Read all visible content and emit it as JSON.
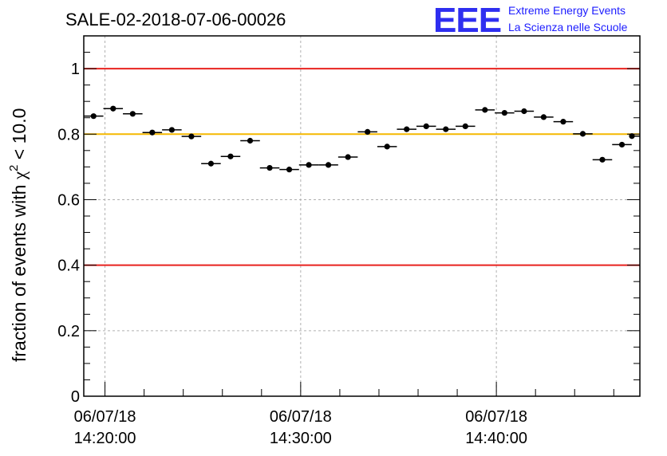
{
  "chart_data": {
    "type": "scatter",
    "title": "SALE-02-2018-07-06-00026",
    "ylabel": "fraction of events with χ² < 10.0",
    "ylabel_main": "fraction of events with ",
    "ylabel_chi": "χ",
    "ylabel_sup": "2",
    "ylabel_tail": " < 10.0",
    "xlabel": "",
    "x_unit": "minutes",
    "xlim": [
      "14:18:55",
      "14:47:20"
    ],
    "ylim": [
      0,
      1.1
    ],
    "x_ticks": [
      {
        "x": "14:20:00",
        "line1": "06/07/18",
        "line2": "14:20:00"
      },
      {
        "x": "14:30:00",
        "line1": "06/07/18",
        "line2": "14:30:00"
      },
      {
        "x": "14:40:00",
        "line1": "06/07/18",
        "line2": "14:40:00"
      }
    ],
    "y_ticks": [
      {
        "y": 0,
        "label": "0"
      },
      {
        "y": 0.2,
        "label": "0.2"
      },
      {
        "y": 0.4,
        "label": "0.4"
      },
      {
        "y": 0.6,
        "label": "0.6"
      },
      {
        "y": 0.8,
        "label": "0.8"
      },
      {
        "y": 1,
        "label": "1"
      }
    ],
    "grid": true,
    "reference_lines": [
      {
        "y": 1.0,
        "color": "#e8221e"
      },
      {
        "y": 0.8,
        "color": "#f5b800"
      },
      {
        "y": 0.4,
        "color": "#e8221e"
      }
    ],
    "bin_width_min": 1,
    "series": [
      {
        "marker_color": "#000000",
        "points": [
          {
            "x": "14:19:25",
            "y": 0.855
          },
          {
            "x": "14:20:25",
            "y": 0.878
          },
          {
            "x": "14:21:25",
            "y": 0.862
          },
          {
            "x": "14:22:25",
            "y": 0.805
          },
          {
            "x": "14:23:25",
            "y": 0.813
          },
          {
            "x": "14:24:25",
            "y": 0.793
          },
          {
            "x": "14:25:25",
            "y": 0.71
          },
          {
            "x": "14:26:25",
            "y": 0.732
          },
          {
            "x": "14:27:25",
            "y": 0.78
          },
          {
            "x": "14:28:25",
            "y": 0.697
          },
          {
            "x": "14:29:25",
            "y": 0.692
          },
          {
            "x": "14:30:25",
            "y": 0.706
          },
          {
            "x": "14:31:25",
            "y": 0.706
          },
          {
            "x": "14:32:25",
            "y": 0.73
          },
          {
            "x": "14:33:25",
            "y": 0.807
          },
          {
            "x": "14:34:25",
            "y": 0.762
          },
          {
            "x": "14:35:25",
            "y": 0.815
          },
          {
            "x": "14:36:25",
            "y": 0.824
          },
          {
            "x": "14:37:25",
            "y": 0.815
          },
          {
            "x": "14:38:25",
            "y": 0.824
          },
          {
            "x": "14:39:25",
            "y": 0.874
          },
          {
            "x": "14:40:25",
            "y": 0.865
          },
          {
            "x": "14:41:25",
            "y": 0.87
          },
          {
            "x": "14:42:25",
            "y": 0.852
          },
          {
            "x": "14:43:25",
            "y": 0.838
          },
          {
            "x": "14:44:25",
            "y": 0.801
          },
          {
            "x": "14:45:25",
            "y": 0.722
          },
          {
            "x": "14:46:25",
            "y": 0.768
          },
          {
            "x": "14:47:25",
            "y": 0.794
          }
        ]
      }
    ]
  },
  "logo": {
    "mark": "EEE",
    "line1": "Extreme Energy Events",
    "line2": "La Scienza nelle Scuole",
    "color": "#1c1cff"
  }
}
